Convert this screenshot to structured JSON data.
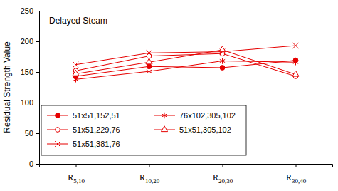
{
  "chart_data": {
    "type": "line",
    "annotation": "Delayed Steam",
    "y_label": "Residual Strength Value",
    "categories": [
      "R5,10",
      "R10,20",
      "R20,30",
      "R30,40"
    ],
    "series": [
      {
        "name": "51x51,152,51",
        "color": "#e60000",
        "marker": "circle",
        "values": [
          143,
          159,
          157,
          169
        ]
      },
      {
        "name": "51x51,229,76",
        "color": "#e60000",
        "marker": "circle-open",
        "values": [
          152,
          176,
          180,
          143
        ]
      },
      {
        "name": "51x51,381,76",
        "color": "#e60000",
        "marker": "x",
        "values": [
          162,
          181,
          183,
          193
        ]
      },
      {
        "name": "76x102,305,102",
        "color": "#e60000",
        "marker": "star",
        "values": [
          138,
          151,
          168,
          166
        ]
      },
      {
        "name": "51x51,305,102",
        "color": "#e60000",
        "marker": "triangle-open",
        "values": [
          147,
          166,
          186,
          146
        ]
      }
    ],
    "ylim": [
      0,
      250
    ],
    "yticks": [
      0,
      50,
      100,
      150,
      200,
      250
    ],
    "grid": false,
    "legend": "lower left"
  }
}
